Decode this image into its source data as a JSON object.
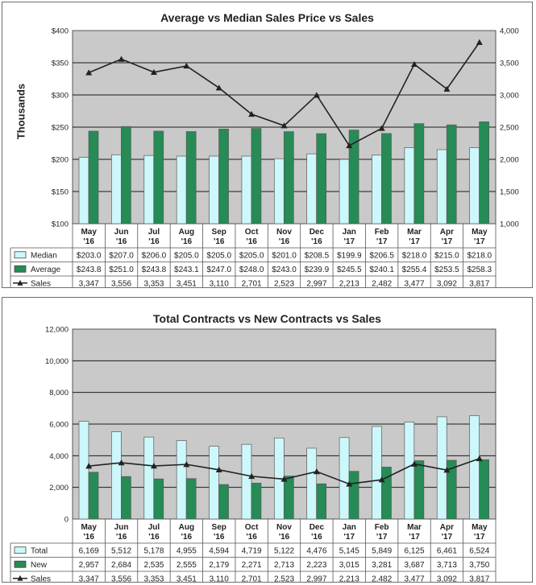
{
  "colors": {
    "median": "#ccf8fb",
    "average": "#268b55",
    "sales": "#222222",
    "plot_bg": "#c9c9c9",
    "grid": "#1a1a1a"
  },
  "chart_data": [
    {
      "type": "bar",
      "title": "Average vs Median Sales Price vs Sales",
      "ylabel": "Thousands",
      "categories": [
        [
          "May",
          "'16"
        ],
        [
          "Jun",
          "'16"
        ],
        [
          "Jul",
          "'16"
        ],
        [
          "Aug",
          "'16"
        ],
        [
          "Sep",
          "'16"
        ],
        [
          "Oct",
          "'16"
        ],
        [
          "Nov",
          "'16"
        ],
        [
          "Dec",
          "'16"
        ],
        [
          "Jan",
          "'17"
        ],
        [
          "Feb",
          "'17"
        ],
        [
          "Mar",
          "'17"
        ],
        [
          "Apr",
          "'17"
        ],
        [
          "May",
          "'17"
        ]
      ],
      "ylim": [
        100,
        400
      ],
      "yticks": [
        "$100",
        "$150",
        "$200",
        "$250",
        "$300",
        "$350",
        "$400"
      ],
      "ylim_right": [
        1000,
        4000
      ],
      "yticks_right": [
        "1,000",
        "1,500",
        "2,000",
        "2,500",
        "3,000",
        "3,500",
        "4,000"
      ],
      "series": [
        {
          "name": "Median",
          "kind": "bar",
          "values": [
            203.0,
            207.0,
            206.0,
            205.0,
            205.0,
            205.0,
            201.0,
            208.5,
            199.9,
            206.5,
            218.0,
            215.0,
            218.0
          ],
          "labels": [
            "$203.0",
            "$207.0",
            "$206.0",
            "$205.0",
            "$205.0",
            "$205.0",
            "$201.0",
            "$208.5",
            "$199.9",
            "$206.5",
            "$218.0",
            "$215.0",
            "$218.0"
          ]
        },
        {
          "name": "Average",
          "kind": "bar",
          "values": [
            243.8,
            251.0,
            243.8,
            243.1,
            247.0,
            248.0,
            243.0,
            239.9,
            245.5,
            240.1,
            255.4,
            253.5,
            258.3
          ],
          "labels": [
            "$243.8",
            "$251.0",
            "$243.8",
            "$243.1",
            "$247.0",
            "$248.0",
            "$243.0",
            "$239.9",
            "$245.5",
            "$240.1",
            "$255.4",
            "$253.5",
            "$258.3"
          ]
        },
        {
          "name": "Sales",
          "kind": "line",
          "axis": "right",
          "values": [
            3347,
            3556,
            3353,
            3451,
            3110,
            2701,
            2523,
            2997,
            2213,
            2482,
            3477,
            3092,
            3817
          ],
          "labels": [
            "3,347",
            "3,556",
            "3,353",
            "3,451",
            "3,110",
            "2,701",
            "2,523",
            "2,997",
            "2,213",
            "2,482",
            "3,477",
            "3,092",
            "3,817"
          ]
        }
      ],
      "grid": true,
      "legend": "data-table"
    },
    {
      "type": "bar",
      "title": "Total Contracts vs New Contracts vs Sales",
      "ylabel": "",
      "categories": [
        [
          "May",
          "'16"
        ],
        [
          "Jun",
          "'16"
        ],
        [
          "Jul",
          "'16"
        ],
        [
          "Aug",
          "'16"
        ],
        [
          "Sep",
          "'16"
        ],
        [
          "Oct",
          "'16"
        ],
        [
          "Nov",
          "'16"
        ],
        [
          "Dec",
          "'16"
        ],
        [
          "Jan",
          "'17"
        ],
        [
          "Feb",
          "'17"
        ],
        [
          "Mar",
          "'17"
        ],
        [
          "Apr",
          "'17"
        ],
        [
          "May",
          "'17"
        ]
      ],
      "ylim": [
        0,
        12000
      ],
      "yticks": [
        "0",
        "2,000",
        "4,000",
        "6,000",
        "8,000",
        "10,000",
        "12,000"
      ],
      "series": [
        {
          "name": "Total",
          "kind": "bar",
          "values": [
            6169,
            5512,
            5178,
            4955,
            4594,
            4719,
            5122,
            4476,
            5145,
            5849,
            6125,
            6461,
            6524
          ],
          "labels": [
            "6,169",
            "5,512",
            "5,178",
            "4,955",
            "4,594",
            "4,719",
            "5,122",
            "4,476",
            "5,145",
            "5,849",
            "6,125",
            "6,461",
            "6,524"
          ]
        },
        {
          "name": "New",
          "kind": "bar",
          "values": [
            2957,
            2684,
            2535,
            2555,
            2179,
            2271,
            2713,
            2223,
            3015,
            3281,
            3687,
            3713,
            3750
          ],
          "labels": [
            "2,957",
            "2,684",
            "2,535",
            "2,555",
            "2,179",
            "2,271",
            "2,713",
            "2,223",
            "3,015",
            "3,281",
            "3,687",
            "3,713",
            "3,750"
          ]
        },
        {
          "name": "Sales",
          "kind": "line",
          "values": [
            3347,
            3556,
            3353,
            3451,
            3110,
            2701,
            2523,
            2997,
            2213,
            2482,
            3477,
            3092,
            3817
          ],
          "labels": [
            "3,347",
            "3,556",
            "3,353",
            "3,451",
            "3,110",
            "2,701",
            "2,523",
            "2,997",
            "2,213",
            "2,482",
            "3,477",
            "3,092",
            "3,817"
          ]
        }
      ],
      "grid": true,
      "legend": "data-table"
    }
  ]
}
